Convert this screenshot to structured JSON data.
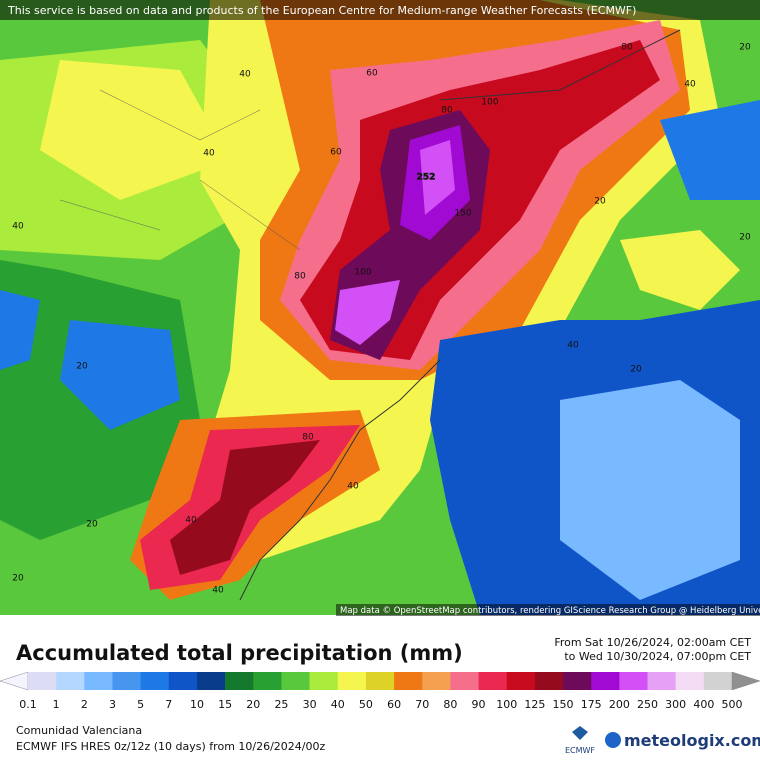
{
  "header": {
    "notice": "This service is based on data and products of the European Centre for Medium-range Weather Forecasts (ECMWF)"
  },
  "map": {
    "attribution": "Map data © OpenStreetMap contributors, rendering GIScience Research Group @ Heidelberg University",
    "contour_labels": [
      "40",
      "60",
      "80",
      "20",
      "40",
      "40",
      "60",
      "80",
      "100",
      "252",
      "150",
      "20",
      "40",
      "20",
      "80",
      "100",
      "40",
      "20",
      "20",
      "80",
      "40",
      "40",
      "20",
      "20",
      "40"
    ]
  },
  "footer": {
    "title": "Accumulated total precipitation (mm)",
    "from": "From Sat 10/26/2024, 02:00am CET",
    "to": "to Wed 10/30/2024, 07:00pm CET",
    "region": "Comunidad Valenciana",
    "model": "ECMWF IFS HRES 0z/12z (10 days) from  10/26/2024/00z",
    "ecmwf_logo": "ECMWF",
    "brand": "meteologix.com"
  },
  "legend": {
    "labels": [
      "0.1",
      "1",
      "2",
      "3",
      "5",
      "7",
      "10",
      "15",
      "20",
      "25",
      "30",
      "40",
      "50",
      "60",
      "70",
      "80",
      "90",
      "100",
      "125",
      "150",
      "175",
      "200",
      "250",
      "300",
      "400",
      "500"
    ],
    "colors": [
      "#f4f4ff",
      "#dcdcf5",
      "#b4d7ff",
      "#78b9ff",
      "#4696f0",
      "#1e78e6",
      "#0f55c8",
      "#0a3c8c",
      "#14782d",
      "#28a032",
      "#5ac83c",
      "#aaeb3c",
      "#f5f550",
      "#dcd228",
      "#f07814",
      "#f5a050",
      "#f56e8c",
      "#eb2850",
      "#c80a1e",
      "#960a1e",
      "#6e0a5a",
      "#a00ad2",
      "#d250f5",
      "#e6a0f5",
      "#f5dcf5",
      "#d2d2d2",
      "#909090"
    ]
  }
}
